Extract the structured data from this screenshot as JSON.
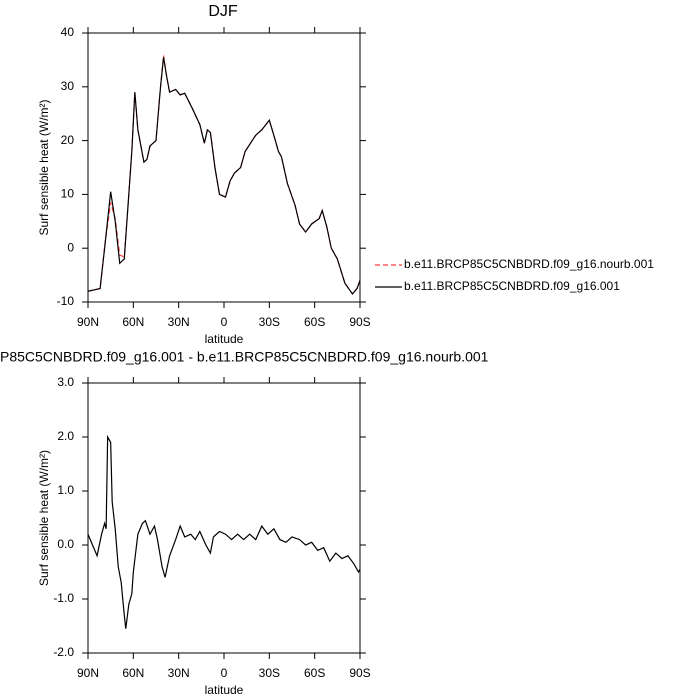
{
  "chart_data": [
    {
      "type": "line",
      "title": "DJF",
      "xlabel": "latitude",
      "ylabel": "Surf sensible heat (W/m²)",
      "x": [
        90,
        82,
        79,
        75,
        72,
        69,
        66,
        63,
        61,
        59,
        57,
        53,
        51,
        49,
        45,
        42,
        40,
        38,
        36,
        32,
        29,
        26,
        21,
        16,
        13,
        11,
        9,
        6,
        3,
        -1,
        -4,
        -7,
        -11,
        -14,
        -21,
        -25,
        -30,
        -34,
        -36,
        -38,
        -42,
        -47,
        -50,
        -54,
        -58,
        -63,
        -65,
        -68,
        -71,
        -75,
        -80,
        -85,
        -88,
        -90
      ],
      "xlim": [
        90,
        -90
      ],
      "xticks": [
        {
          "value": 90,
          "label": "90N"
        },
        {
          "value": 60,
          "label": "60N"
        },
        {
          "value": 30,
          "label": "30N"
        },
        0,
        {
          "value": -30,
          "label": "30S"
        },
        {
          "value": -60,
          "label": "60S"
        },
        {
          "value": -90,
          "label": "90S"
        }
      ],
      "ylim": [
        -10,
        40
      ],
      "yticks": [
        -10,
        0,
        10,
        20,
        30,
        40
      ],
      "legend": "right",
      "series": [
        {
          "name": "b.e11.BRCP85C5CNBDRD.f09_g16.nourb.001",
          "color": "#ff3b3b",
          "dash": "dashed",
          "values": [
            -8,
            -7.5,
            0.3,
            8.5,
            5.5,
            -1.3,
            -1.6,
            10,
            18,
            29,
            22,
            16,
            16.5,
            19,
            20,
            30,
            35.8,
            32,
            29,
            29.5,
            28.5,
            28.8,
            26,
            23,
            19.5,
            22,
            21.5,
            15,
            10,
            9.5,
            12.5,
            14,
            15,
            18,
            21,
            22,
            23.8,
            20,
            18,
            17,
            12,
            8,
            4.5,
            3,
            4.5,
            5.5,
            7,
            4,
            0,
            -2,
            -6.5,
            -8.5,
            -7.5,
            -6
          ]
        },
        {
          "name": "b.e11.BRCP85C5CNBDRD.f09_g16.001",
          "color": "#000000",
          "dash": "solid",
          "values": [
            -8,
            -7.5,
            0,
            10.5,
            5,
            -2.8,
            -2,
            10,
            18,
            29,
            22,
            16,
            16.5,
            19,
            20,
            30,
            35.5,
            32,
            29,
            29.5,
            28.5,
            28.8,
            26,
            23,
            19.5,
            22,
            21.5,
            15,
            10,
            9.5,
            12.5,
            14,
            15,
            18,
            21,
            22,
            23.8,
            20,
            18,
            17,
            12,
            8,
            4.5,
            3,
            4.5,
            5.5,
            7,
            4,
            0,
            -2,
            -6.5,
            -8.5,
            -7.5,
            -6
          ]
        }
      ]
    },
    {
      "type": "line",
      "title": "P85C5CNBDRD.f09_g16.001 - b.e11.BRCP85C5CNBDRD.f09_g16.nourb.001",
      "xlabel": "latitude",
      "ylabel": "Surf sensible heat (W/m²)",
      "x": [
        90,
        87,
        84,
        81,
        79,
        78,
        77,
        75,
        74,
        72,
        70,
        68,
        66,
        65,
        63,
        61,
        60,
        57,
        54,
        52,
        49,
        46,
        44,
        41,
        39,
        36,
        32,
        29,
        26,
        22,
        19,
        16,
        12,
        9,
        7,
        3,
        -1,
        -5,
        -9,
        -13,
        -17,
        -21,
        -25,
        -29,
        -33,
        -37,
        -41,
        -45,
        -50,
        -54,
        -58,
        -62,
        -66,
        -70,
        -74,
        -78,
        -82,
        -86,
        -89,
        -90
      ],
      "xlim": [
        90,
        -90
      ],
      "xticks": [
        {
          "value": 90,
          "label": "90N"
        },
        {
          "value": 60,
          "label": "60N"
        },
        {
          "value": 30,
          "label": "30N"
        },
        0,
        {
          "value": -30,
          "label": "30S"
        },
        {
          "value": -60,
          "label": "60S"
        },
        {
          "value": -90,
          "label": "90S"
        }
      ],
      "ylim": [
        -2,
        3
      ],
      "yticks": [
        {
          "value": -2,
          "label": "-2.0"
        },
        {
          "value": -1,
          "label": "-1.0"
        },
        {
          "value": 0,
          "label": "0.0"
        },
        {
          "value": 1,
          "label": "1.0"
        },
        {
          "value": 2,
          "label": "2.0"
        },
        {
          "value": 3,
          "label": "3.0"
        }
      ],
      "series": [
        {
          "color": "#000000",
          "dash": "solid",
          "values": [
            0.2,
            0,
            -0.2,
            0.2,
            0.4,
            0.3,
            2.0,
            1.9,
            0.8,
            0.3,
            -0.4,
            -0.7,
            -1.3,
            -1.55,
            -1.1,
            -0.9,
            -0.5,
            0.2,
            0.4,
            0.45,
            0.2,
            0.35,
            0.1,
            -0.4,
            -0.6,
            -0.2,
            0.1,
            0.35,
            0.15,
            0.2,
            0.1,
            0.25,
            0,
            -0.15,
            0.15,
            0.25,
            0.2,
            0.1,
            0.2,
            0.1,
            0.2,
            0.1,
            0.35,
            0.2,
            0.3,
            0.1,
            0.05,
            0.15,
            0.1,
            0,
            0.05,
            -0.1,
            -0.05,
            -0.3,
            -0.15,
            -0.25,
            -0.2,
            -0.35,
            -0.5,
            -0.45
          ]
        }
      ]
    }
  ]
}
